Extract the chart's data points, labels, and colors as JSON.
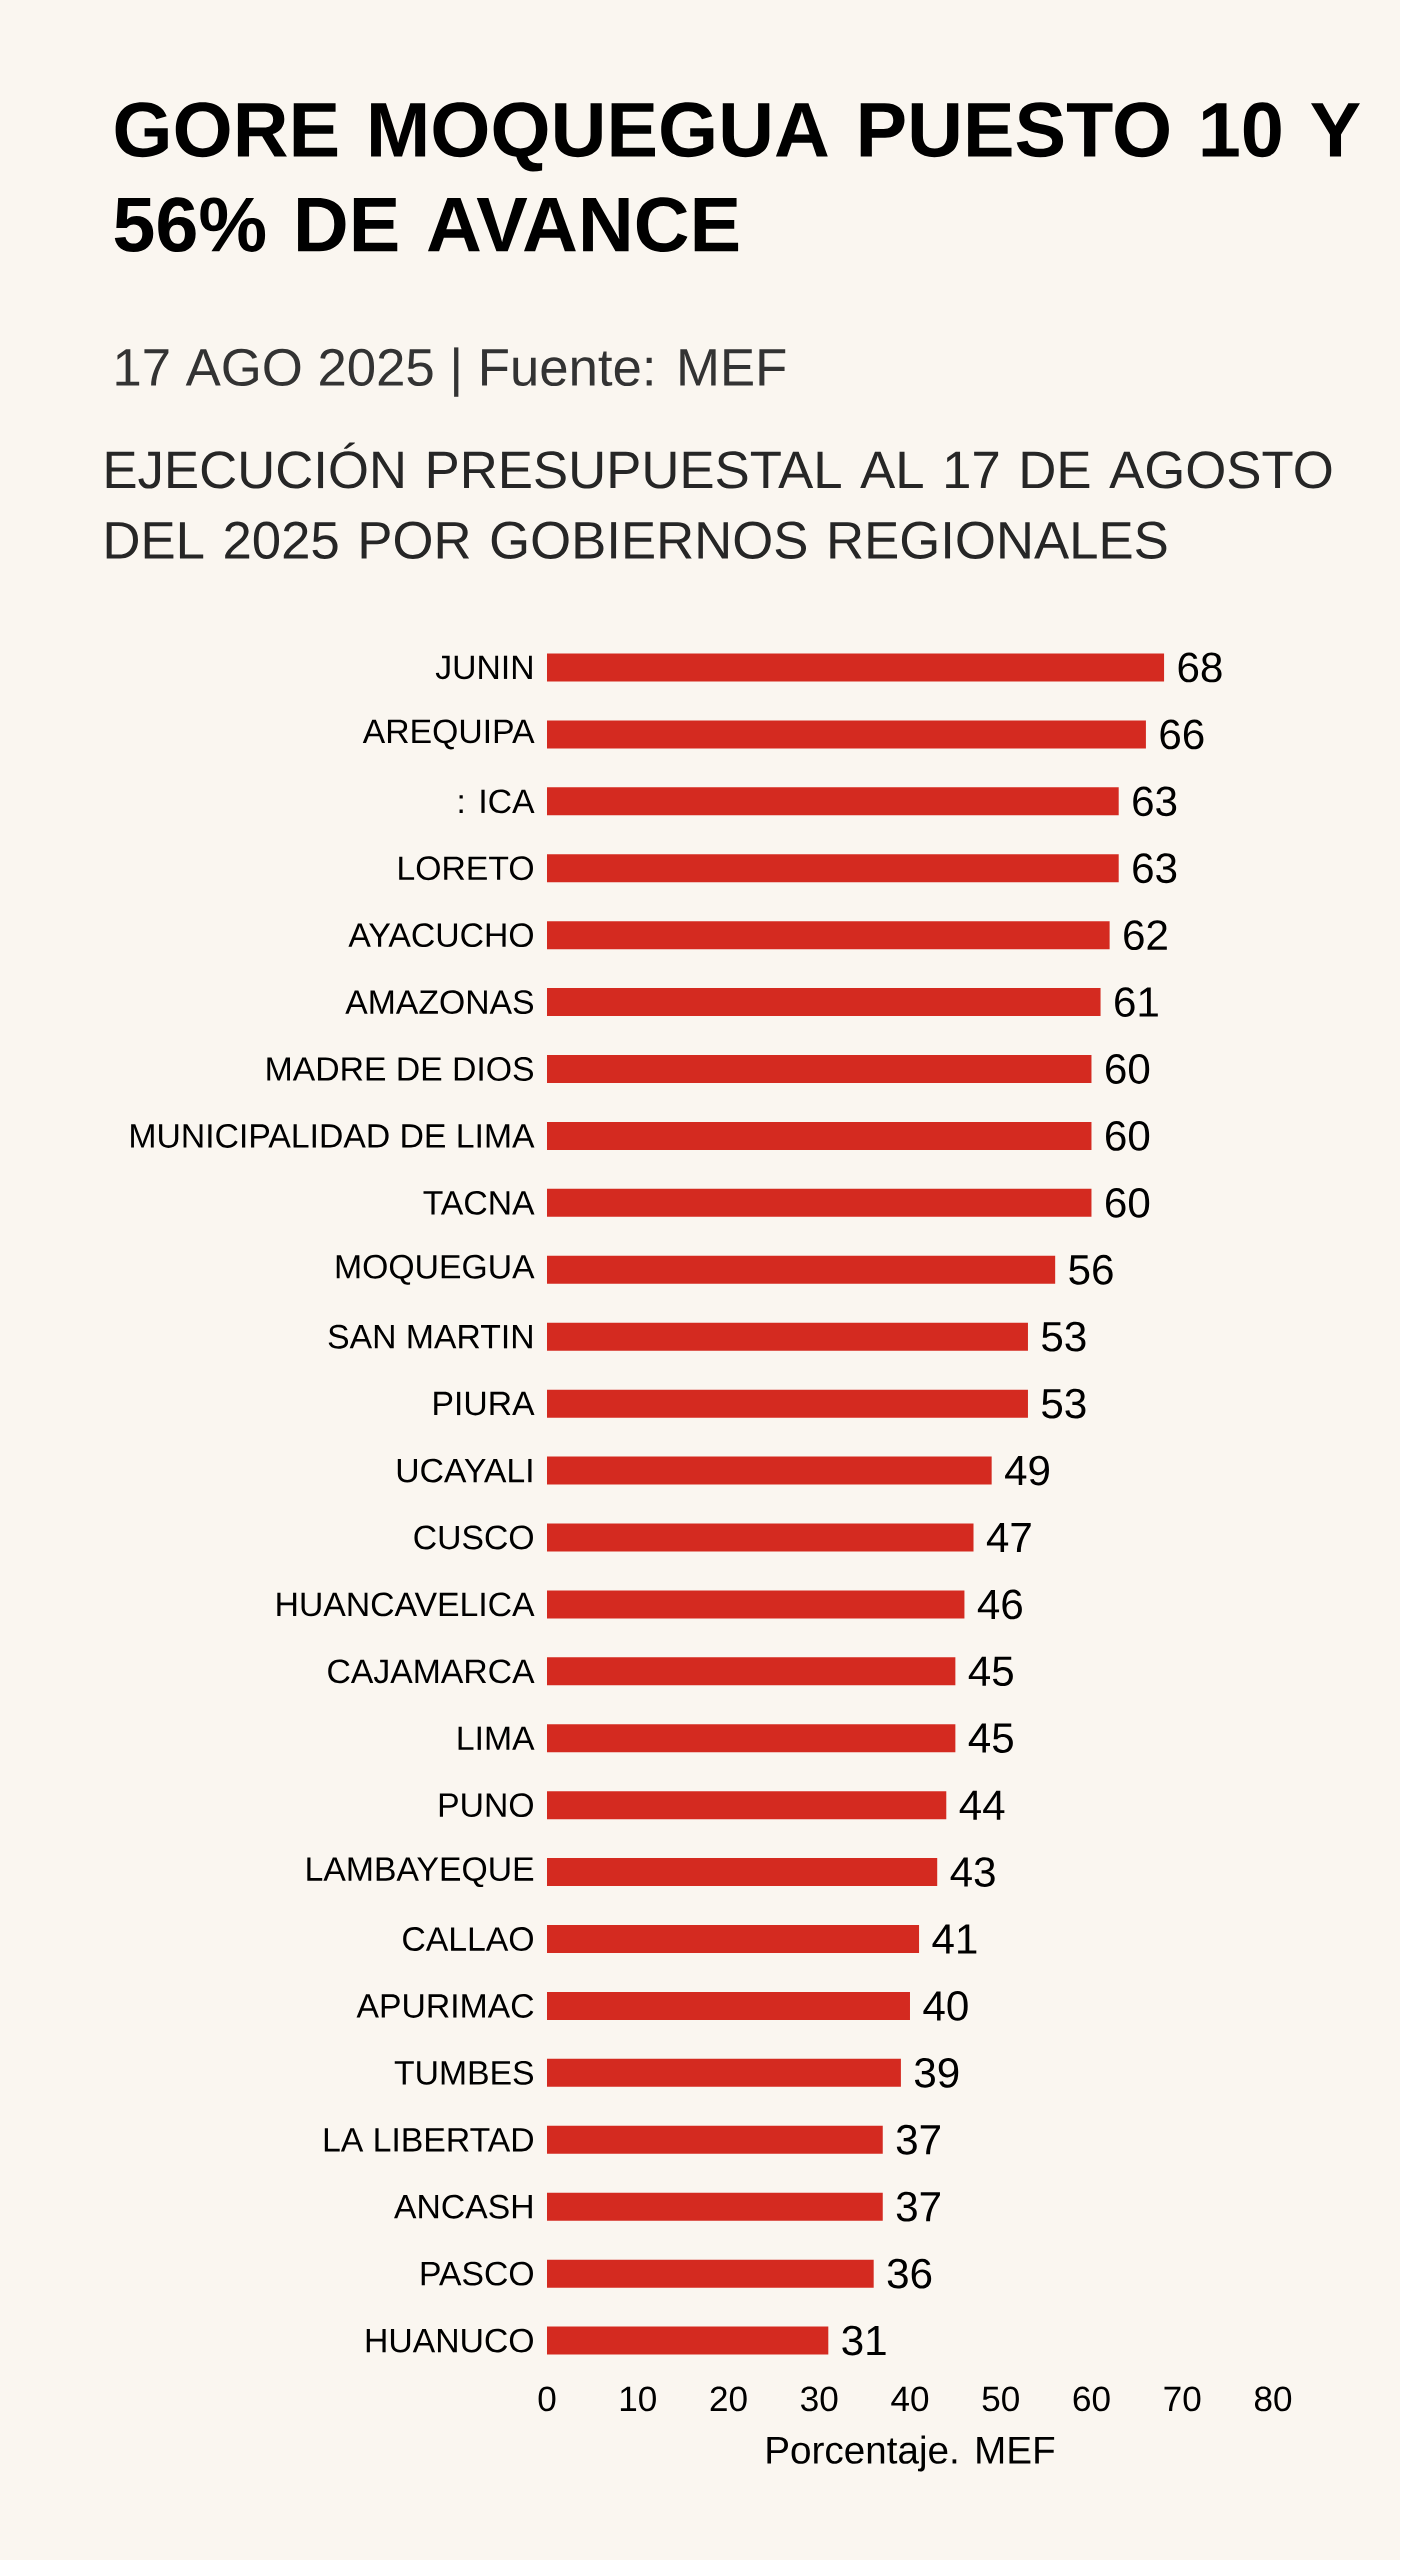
{
  "chart_data": {
    "type": "bar",
    "orientation": "horizontal",
    "title": "GORE MOQUEGUA PUESTO 10 Y 56% DE AVANCE",
    "subtitle": "EJECUCIÓN PRESUPUESTAL AL 17 DE AGOSTO DEL 2025 POR GOBIERNOS REGIONALES",
    "annotations": [
      "17 AGO 2025 | Fuente: MEF"
    ],
    "xlabel": "Porcentaje. MEF",
    "categories": [
      "JUNIN",
      "AREQUIPA",
      ": ICA",
      "LORETO",
      "AYACUCHO",
      "AMAZONAS",
      "MADRE DE DIOS",
      "MUNICIPALIDAD DE LIMA",
      "TACNA",
      "MOQUEGUA",
      "SAN MARTIN",
      "PIURA",
      "UCAYALI",
      "CUSCO",
      "HUANCAVELICA",
      "CAJAMARCA",
      "LIMA",
      "PUNO",
      "LAMBAYEQUE",
      "CALLAO",
      "APURIMAC",
      "TUMBES",
      "LA LIBERTAD",
      "ANCASH",
      "PASCO",
      "HUANUCO"
    ],
    "values": [
      68,
      66,
      63,
      63,
      62,
      61,
      60,
      60,
      60,
      56,
      53,
      53,
      49,
      47,
      46,
      45,
      45,
      44,
      43,
      41,
      40,
      39,
      37,
      37,
      36,
      31
    ],
    "color": "#d42a20",
    "data_labels": true,
    "xlim": [
      0,
      80
    ],
    "xticks": [
      0,
      10,
      20,
      30,
      40,
      50,
      60,
      70,
      80
    ]
  }
}
